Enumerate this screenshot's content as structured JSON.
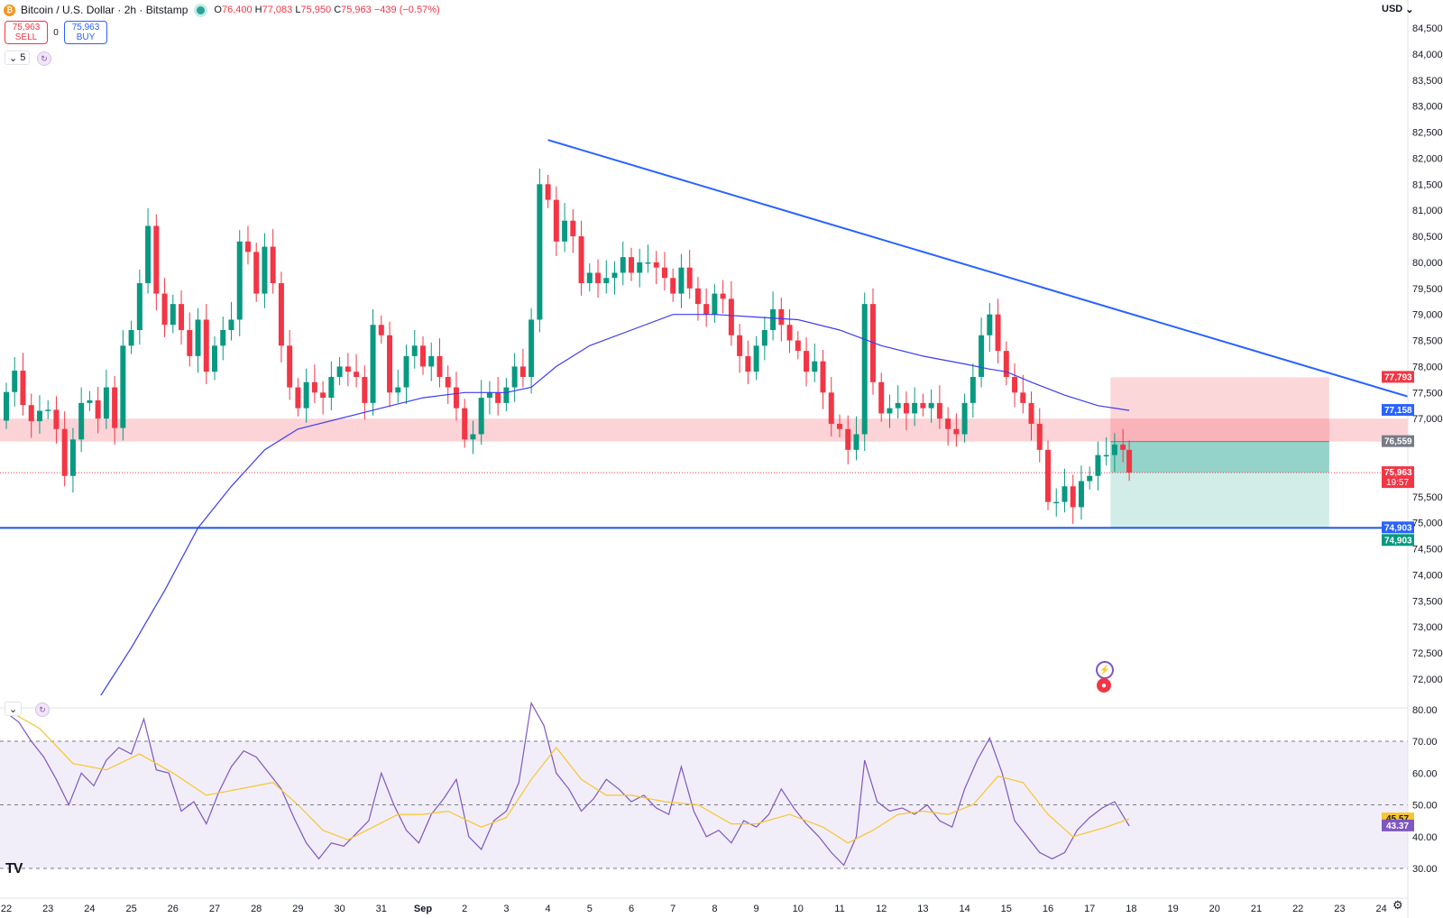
{
  "header": {
    "symbol": "Bitcoin / U.S. Dollar · 2h · Bitstamp",
    "coin_glyph": "₿",
    "ohlc": [
      {
        "k": "O",
        "v": "76,400"
      },
      {
        "k": "H",
        "v": "77,083"
      },
      {
        "k": "L",
        "v": "75,950"
      },
      {
        "k": "C",
        "v": "75,963"
      }
    ],
    "change": "−439 (−0.57%)",
    "sell_price": "75,963",
    "sell_label": "SELL",
    "spread": "0",
    "buy_price": "75,963",
    "buy_label": "BUY",
    "indicator_count": "5"
  },
  "currency": "USD",
  "price_axis": {
    "min": 71700,
    "max": 84700,
    "ticks": [
      "84,500",
      "84,000",
      "83,500",
      "83,000",
      "82,500",
      "82,000",
      "81,500",
      "81,000",
      "80,500",
      "80,000",
      "79,500",
      "79,000",
      "78,500",
      "78,000",
      "77,500",
      "77,000",
      "75,500",
      "75,000",
      "74,500",
      "74,000",
      "73,500",
      "73,000",
      "72,500",
      "72,000"
    ],
    "tick_values": [
      84500,
      84000,
      83500,
      83000,
      82500,
      82000,
      81500,
      81000,
      80500,
      80000,
      79500,
      79000,
      78500,
      78000,
      77500,
      77000,
      75500,
      75000,
      74500,
      74000,
      73500,
      73000,
      72500,
      72000
    ]
  },
  "price_labels": [
    {
      "text": "77,793",
      "value": 77793,
      "color": "#f23645"
    },
    {
      "text": "77,158",
      "value": 77158,
      "color": "#2962ff"
    },
    {
      "text": "76,559",
      "value": 76559,
      "color": "#787b86"
    },
    {
      "text": "75,963",
      "value": 75963,
      "color": "#f23645",
      "sub": "19:57"
    },
    {
      "text": "74,903",
      "value": 74903,
      "color": "#2962ff"
    },
    {
      "text": "74,903",
      "value": 74903,
      "color": "#089981",
      "offset": 1
    }
  ],
  "rsi_axis": {
    "ticks": [
      "80.00",
      "70.00",
      "60.00",
      "50.00",
      "40.00",
      "30.00"
    ],
    "tick_values": [
      80,
      70,
      60,
      50,
      40,
      30
    ],
    "labels": [
      {
        "text": "45.57",
        "value": 45.57,
        "color": "#f7c531"
      },
      {
        "text": "43.37",
        "value": 43.37,
        "color": "#7e57c2"
      }
    ]
  },
  "time_axis": [
    "22",
    "23",
    "24",
    "25",
    "26",
    "27",
    "28",
    "29",
    "30",
    "31",
    "Sep",
    "2",
    "3",
    "4",
    "5",
    "6",
    "7",
    "8",
    "9",
    "10",
    "11",
    "12",
    "13",
    "14",
    "15",
    "16",
    "17",
    "18",
    "19",
    "20",
    "21",
    "22",
    "23",
    "24"
  ],
  "drawings": {
    "resistance_zone": {
      "top": 77000,
      "bottom": 76559
    },
    "support_line": 74903,
    "trendline": {
      "from": {
        "day": 13.0,
        "price": 82350
      },
      "to": {
        "day": 34.7,
        "price": 77170
      }
    },
    "short_position": {
      "start_day": 26.5,
      "end_day": 31.75,
      "entry": 76559,
      "stop": 77793,
      "target": 74903,
      "current": 75963
    }
  },
  "chart_data": {
    "type": "candlestick",
    "x_unit": "day index (0 = Aug 22, 10 = Sep 1)",
    "candles": [
      [
        0.0,
        76960,
        77510
      ],
      [
        0.2,
        77510,
        77920
      ],
      [
        0.4,
        77920,
        77260
      ],
      [
        0.6,
        77260,
        76950
      ],
      [
        0.8,
        76950,
        77150
      ],
      [
        1.0,
        77150,
        77170
      ],
      [
        1.2,
        77170,
        76800
      ],
      [
        1.4,
        76800,
        75900
      ],
      [
        1.6,
        75900,
        76600
      ],
      [
        1.8,
        76600,
        77300
      ],
      [
        2.0,
        77300,
        77350
      ],
      [
        2.2,
        77350,
        77000
      ],
      [
        2.4,
        77000,
        77600
      ],
      [
        2.6,
        77600,
        76820
      ],
      [
        2.8,
        76820,
        78400
      ],
      [
        3.0,
        78400,
        78700
      ],
      [
        3.2,
        78700,
        79600
      ],
      [
        3.4,
        79600,
        80700
      ],
      [
        3.6,
        80700,
        79400
      ],
      [
        3.8,
        79400,
        78800
      ],
      [
        4.0,
        78800,
        79200
      ],
      [
        4.2,
        79200,
        78700
      ],
      [
        4.4,
        78700,
        78200
      ],
      [
        4.6,
        78200,
        78900
      ],
      [
        4.8,
        78900,
        77900
      ],
      [
        5.0,
        77900,
        78400
      ],
      [
        5.2,
        78400,
        78700
      ],
      [
        5.4,
        78700,
        78900
      ],
      [
        5.6,
        78900,
        80400
      ],
      [
        5.8,
        80400,
        80200
      ],
      [
        6.0,
        80200,
        79400
      ],
      [
        6.2,
        79400,
        80300
      ],
      [
        6.4,
        80300,
        79600
      ],
      [
        6.6,
        79600,
        78400
      ],
      [
        6.8,
        78400,
        77600
      ],
      [
        7.0,
        77600,
        77200
      ],
      [
        7.2,
        77200,
        77700
      ],
      [
        7.4,
        77700,
        77500
      ],
      [
        7.6,
        77500,
        77400
      ],
      [
        7.8,
        77400,
        77800
      ],
      [
        8.0,
        77800,
        78000
      ],
      [
        8.2,
        78000,
        77900
      ],
      [
        8.4,
        77900,
        77800
      ],
      [
        8.6,
        77800,
        77300
      ],
      [
        8.8,
        77300,
        78800
      ],
      [
        9.0,
        78800,
        78600
      ],
      [
        9.2,
        78600,
        77500
      ],
      [
        9.4,
        77500,
        77600
      ],
      [
        9.6,
        77600,
        78200
      ],
      [
        9.8,
        78200,
        78400
      ],
      [
        10.0,
        78400,
        78000
      ],
      [
        10.2,
        78000,
        78200
      ],
      [
        10.4,
        78200,
        77800
      ],
      [
        10.6,
        77800,
        77600
      ],
      [
        10.8,
        77600,
        77200
      ],
      [
        11.0,
        77200,
        76600
      ],
      [
        11.2,
        76600,
        76700
      ],
      [
        11.4,
        76700,
        77400
      ],
      [
        11.6,
        77400,
        77500
      ],
      [
        11.8,
        77500,
        77300
      ],
      [
        12.0,
        77300,
        77600
      ],
      [
        12.2,
        77600,
        78000
      ],
      [
        12.4,
        78000,
        77800
      ],
      [
        12.6,
        77800,
        78900
      ],
      [
        12.8,
        78900,
        81500
      ],
      [
        13.0,
        81500,
        81200
      ],
      [
        13.2,
        81200,
        80400
      ],
      [
        13.4,
        80400,
        80800
      ],
      [
        13.6,
        80800,
        80500
      ],
      [
        13.8,
        80500,
        79600
      ],
      [
        14.0,
        79600,
        79800
      ],
      [
        14.2,
        79800,
        79600
      ],
      [
        14.4,
        79600,
        79700
      ],
      [
        14.6,
        79700,
        79800
      ],
      [
        14.8,
        79800,
        80100
      ],
      [
        15.0,
        80100,
        79800
      ],
      [
        15.2,
        79800,
        80000
      ],
      [
        15.4,
        80000,
        80000
      ],
      [
        15.6,
        80000,
        79900
      ],
      [
        15.8,
        79900,
        79700
      ],
      [
        16.0,
        79700,
        79400
      ],
      [
        16.2,
        79400,
        79900
      ],
      [
        16.4,
        79900,
        79500
      ],
      [
        16.6,
        79500,
        79200
      ],
      [
        16.8,
        79200,
        79000
      ],
      [
        17.0,
        79000,
        79400
      ],
      [
        17.2,
        79400,
        79300
      ],
      [
        17.4,
        79300,
        78600
      ],
      [
        17.6,
        78600,
        78200
      ],
      [
        17.8,
        78200,
        77900
      ],
      [
        18.0,
        77900,
        78400
      ],
      [
        18.2,
        78400,
        78700
      ],
      [
        18.4,
        78700,
        79100
      ],
      [
        18.6,
        79100,
        78800
      ],
      [
        18.8,
        78800,
        78500
      ],
      [
        19.0,
        78500,
        78300
      ],
      [
        19.2,
        78300,
        77900
      ],
      [
        19.4,
        77900,
        78100
      ],
      [
        19.6,
        78100,
        77500
      ],
      [
        19.8,
        77500,
        76900
      ],
      [
        20.0,
        76900,
        76800
      ],
      [
        20.2,
        76800,
        76400
      ],
      [
        20.4,
        76400,
        76700
      ],
      [
        20.6,
        76700,
        79200
      ],
      [
        20.8,
        79200,
        77700
      ],
      [
        21.0,
        77700,
        77100
      ],
      [
        21.2,
        77100,
        77200
      ],
      [
        21.4,
        77200,
        77300
      ],
      [
        21.6,
        77300,
        77100
      ],
      [
        21.8,
        77100,
        77300
      ],
      [
        22.0,
        77300,
        77200
      ],
      [
        22.2,
        77200,
        77300
      ],
      [
        22.4,
        77300,
        77000
      ],
      [
        22.6,
        77000,
        76800
      ],
      [
        22.8,
        76800,
        76700
      ],
      [
        23.0,
        76700,
        77300
      ],
      [
        23.2,
        77300,
        77800
      ],
      [
        23.4,
        77800,
        78600
      ],
      [
        23.6,
        78600,
        79000
      ],
      [
        23.8,
        79000,
        78300
      ],
      [
        24.0,
        78300,
        77800
      ],
      [
        24.2,
        77800,
        77500
      ],
      [
        24.4,
        77500,
        77300
      ],
      [
        24.6,
        77300,
        76900
      ],
      [
        24.8,
        76900,
        76400
      ],
      [
        25.0,
        76400,
        75400
      ],
      [
        25.2,
        75400,
        75400
      ],
      [
        25.4,
        75400,
        75700
      ],
      [
        25.6,
        75700,
        75300
      ],
      [
        25.8,
        75300,
        75800
      ],
      [
        26.0,
        75800,
        75900
      ],
      [
        26.2,
        75900,
        76300
      ],
      [
        26.4,
        76300,
        76300
      ],
      [
        26.6,
        76300,
        76500
      ],
      [
        26.8,
        76500,
        76400
      ],
      [
        26.95,
        76400,
        75963
      ]
    ],
    "ma_line": [
      [
        2.2,
        71600
      ],
      [
        3.0,
        72600
      ],
      [
        3.8,
        73700
      ],
      [
        4.6,
        74900
      ],
      [
        5.4,
        75700
      ],
      [
        6.2,
        76400
      ],
      [
        7.0,
        76800
      ],
      [
        8.0,
        77000
      ],
      [
        9.0,
        77200
      ],
      [
        10.0,
        77400
      ],
      [
        11.0,
        77500
      ],
      [
        12.0,
        77500
      ],
      [
        12.6,
        77600
      ],
      [
        13.2,
        78000
      ],
      [
        14.0,
        78400
      ],
      [
        15.0,
        78700
      ],
      [
        16.0,
        79000
      ],
      [
        17.0,
        79000
      ],
      [
        18.0,
        78950
      ],
      [
        19.0,
        78900
      ],
      [
        20.0,
        78700
      ],
      [
        21.0,
        78400
      ],
      [
        22.0,
        78200
      ],
      [
        23.0,
        78050
      ],
      [
        23.6,
        77950
      ],
      [
        24.0,
        77900
      ],
      [
        24.6,
        77700
      ],
      [
        25.4,
        77450
      ],
      [
        26.2,
        77250
      ],
      [
        26.95,
        77158
      ]
    ],
    "rsi": [
      [
        0,
        79
      ],
      [
        0.3,
        76
      ],
      [
        0.6,
        70
      ],
      [
        0.9,
        65
      ],
      [
        1.2,
        58
      ],
      [
        1.5,
        50
      ],
      [
        1.8,
        60
      ],
      [
        2.1,
        56
      ],
      [
        2.4,
        64
      ],
      [
        2.7,
        68
      ],
      [
        3.0,
        66
      ],
      [
        3.3,
        77
      ],
      [
        3.6,
        61
      ],
      [
        3.9,
        60
      ],
      [
        4.2,
        48
      ],
      [
        4.5,
        51
      ],
      [
        4.8,
        44
      ],
      [
        5.1,
        54
      ],
      [
        5.4,
        62
      ],
      [
        5.7,
        67
      ],
      [
        6.0,
        65
      ],
      [
        6.3,
        60
      ],
      [
        6.6,
        55
      ],
      [
        6.9,
        46
      ],
      [
        7.2,
        38
      ],
      [
        7.5,
        33
      ],
      [
        7.8,
        38
      ],
      [
        8.1,
        37
      ],
      [
        8.4,
        41
      ],
      [
        8.7,
        45
      ],
      [
        9.0,
        60
      ],
      [
        9.3,
        50
      ],
      [
        9.6,
        42
      ],
      [
        9.9,
        38
      ],
      [
        10.2,
        47
      ],
      [
        10.5,
        52
      ],
      [
        10.8,
        58
      ],
      [
        11.1,
        40
      ],
      [
        11.4,
        36
      ],
      [
        11.7,
        45
      ],
      [
        12.0,
        48
      ],
      [
        12.3,
        57
      ],
      [
        12.6,
        82
      ],
      [
        12.9,
        75
      ],
      [
        13.2,
        60
      ],
      [
        13.5,
        55
      ],
      [
        13.8,
        48
      ],
      [
        14.1,
        52
      ],
      [
        14.4,
        58
      ],
      [
        14.7,
        55
      ],
      [
        15.0,
        51
      ],
      [
        15.3,
        53
      ],
      [
        15.6,
        49
      ],
      [
        15.9,
        47
      ],
      [
        16.2,
        62
      ],
      [
        16.5,
        48
      ],
      [
        16.8,
        40
      ],
      [
        17.1,
        42
      ],
      [
        17.4,
        38
      ],
      [
        17.7,
        45
      ],
      [
        18.0,
        43
      ],
      [
        18.3,
        47
      ],
      [
        18.6,
        55
      ],
      [
        18.9,
        49
      ],
      [
        19.2,
        44
      ],
      [
        19.5,
        40
      ],
      [
        19.8,
        35
      ],
      [
        20.1,
        31
      ],
      [
        20.4,
        40
      ],
      [
        20.6,
        64
      ],
      [
        20.9,
        51
      ],
      [
        21.2,
        48
      ],
      [
        21.5,
        49
      ],
      [
        21.8,
        47
      ],
      [
        22.1,
        50
      ],
      [
        22.4,
        45
      ],
      [
        22.7,
        43
      ],
      [
        23.0,
        55
      ],
      [
        23.3,
        64
      ],
      [
        23.6,
        71
      ],
      [
        23.9,
        60
      ],
      [
        24.2,
        45
      ],
      [
        24.5,
        40
      ],
      [
        24.8,
        35
      ],
      [
        25.1,
        33
      ],
      [
        25.4,
        35
      ],
      [
        25.7,
        42
      ],
      [
        26.0,
        46
      ],
      [
        26.3,
        49
      ],
      [
        26.6,
        51
      ],
      [
        26.95,
        43.37
      ]
    ],
    "rsi_ma": [
      [
        0,
        80
      ],
      [
        0.8,
        74
      ],
      [
        1.6,
        63
      ],
      [
        2.4,
        61
      ],
      [
        3.2,
        66
      ],
      [
        4.0,
        60
      ],
      [
        4.8,
        53
      ],
      [
        5.6,
        55
      ],
      [
        6.4,
        57
      ],
      [
        7.0,
        50
      ],
      [
        7.6,
        42
      ],
      [
        8.2,
        39
      ],
      [
        8.8,
        43
      ],
      [
        9.4,
        47
      ],
      [
        10.0,
        47
      ],
      [
        10.6,
        48
      ],
      [
        11.4,
        43
      ],
      [
        12.0,
        46
      ],
      [
        12.6,
        58
      ],
      [
        13.2,
        68
      ],
      [
        13.8,
        58
      ],
      [
        14.4,
        53
      ],
      [
        15.0,
        53
      ],
      [
        15.8,
        51
      ],
      [
        16.6,
        50
      ],
      [
        17.4,
        44
      ],
      [
        18.0,
        44
      ],
      [
        18.8,
        47
      ],
      [
        19.6,
        43
      ],
      [
        20.2,
        38
      ],
      [
        20.8,
        42
      ],
      [
        21.4,
        47
      ],
      [
        22.0,
        48
      ],
      [
        22.6,
        47
      ],
      [
        23.2,
        50
      ],
      [
        23.8,
        59
      ],
      [
        24.4,
        57
      ],
      [
        25.0,
        47
      ],
      [
        25.6,
        40
      ],
      [
        26.4,
        43
      ],
      [
        26.95,
        45.57
      ]
    ],
    "rsi_bands": {
      "upper": 70,
      "middle": 50,
      "lower": 30
    }
  }
}
